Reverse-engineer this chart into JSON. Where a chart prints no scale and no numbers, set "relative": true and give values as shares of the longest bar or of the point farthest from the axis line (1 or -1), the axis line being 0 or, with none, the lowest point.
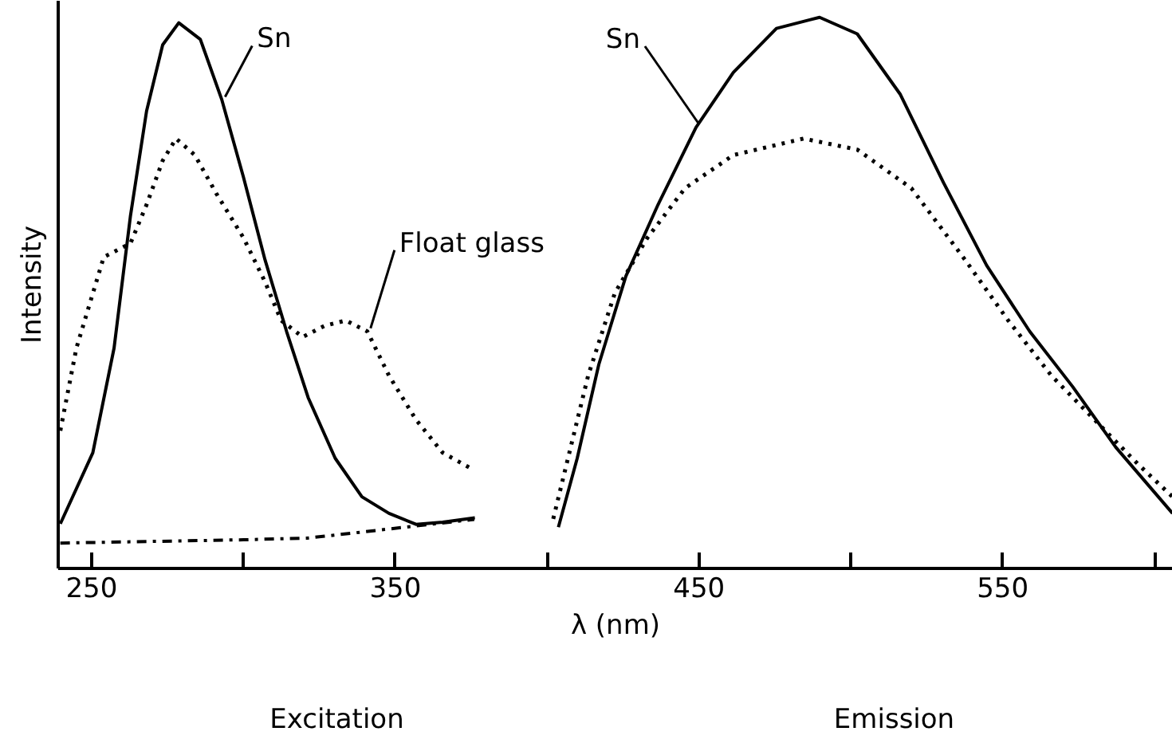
{
  "chart_data": {
    "type": "line",
    "relative": true,
    "xlabel": "λ (nm)",
    "ylabel": "Intensity",
    "xlim": [
      239,
      606
    ],
    "xticks": [
      250,
      {
        "value": 300,
        "label": null
      },
      350,
      {
        "value": 400,
        "label": null
      },
      450,
      {
        "value": 500,
        "label": null
      },
      550,
      {
        "value": 600,
        "label": null
      }
    ],
    "grid": false,
    "marker": "none",
    "series": [
      {
        "color": "#000000",
        "line_style": "solid",
        "x": [
          239.7,
          250.4,
          257.4,
          262.8,
          268.1,
          273.4,
          278.7,
          285.8,
          292.9,
          300,
          307.1,
          314.2,
          321.3,
          330.2,
          339,
          347.9,
          356.8,
          365.6,
          376.2
        ],
        "values": [
          0.081,
          0.21,
          0.4,
          0.64,
          0.83,
          0.95,
          0.99,
          0.96,
          0.85,
          0.71,
          0.56,
          0.43,
          0.31,
          0.2,
          0.13,
          0.1,
          0.08,
          0.084,
          0.092
        ]
      },
      {
        "color": "#000000",
        "line_style": "dotted",
        "x": [
          239.7,
          245,
          254,
          262.8,
          268.1,
          273.4,
          277.8,
          284,
          291.1,
          300,
          307.1,
          312.4,
          319.5,
          326.6,
          333.7,
          340.8,
          347.9,
          356.8,
          365.6,
          375.4
        ],
        "values": [
          0.25,
          0.4,
          0.565,
          0.59,
          0.66,
          0.74,
          0.78,
          0.75,
          0.68,
          0.6,
          0.52,
          0.45,
          0.42,
          0.44,
          0.45,
          0.43,
          0.35,
          0.27,
          0.21,
          0.18
        ]
      },
      {
        "color": "#000000",
        "line_style": "dashdot",
        "x": [
          239.7,
          300,
          321,
          339,
          376
        ],
        "values": [
          0.046,
          0.052,
          0.055,
          0.066,
          0.089
        ]
      },
      {
        "color": "#000000",
        "line_style": "solid",
        "x": [
          403.7,
          409.9,
          417,
          425.9,
          436.5,
          449,
          461.3,
          475.5,
          489.7,
          502.1,
          516.3,
          530.5,
          544.7,
          558.9,
          573,
          587.2,
          605.9
        ],
        "values": [
          0.075,
          0.2,
          0.37,
          0.53,
          0.66,
          0.8,
          0.9,
          0.98,
          1.0,
          0.97,
          0.86,
          0.7,
          0.55,
          0.43,
          0.33,
          0.22,
          0.1
        ]
      },
      {
        "color": "#000000",
        "line_style": "dotted",
        "x": [
          402,
          413.5,
          422.3,
          433,
          445.4,
          461.3,
          484.4,
          502.1,
          519.9,
          537.6,
          551.8,
          566,
          580.2,
          594.4,
          605.9
        ],
        "values": [
          0.09,
          0.35,
          0.5,
          0.6,
          0.69,
          0.75,
          0.78,
          0.76,
          0.69,
          0.56,
          0.45,
          0.35,
          0.27,
          0.19,
          0.13
        ]
      }
    ],
    "annotations": [
      {
        "text": "Sn",
        "x": 292.9,
        "y": 0.85
      },
      {
        "text": "Float glass",
        "x": 340.8,
        "y": 0.43
      },
      {
        "text": "Sn",
        "x": 449,
        "y": 0.8
      },
      "Excitation",
      "Emission"
    ]
  }
}
